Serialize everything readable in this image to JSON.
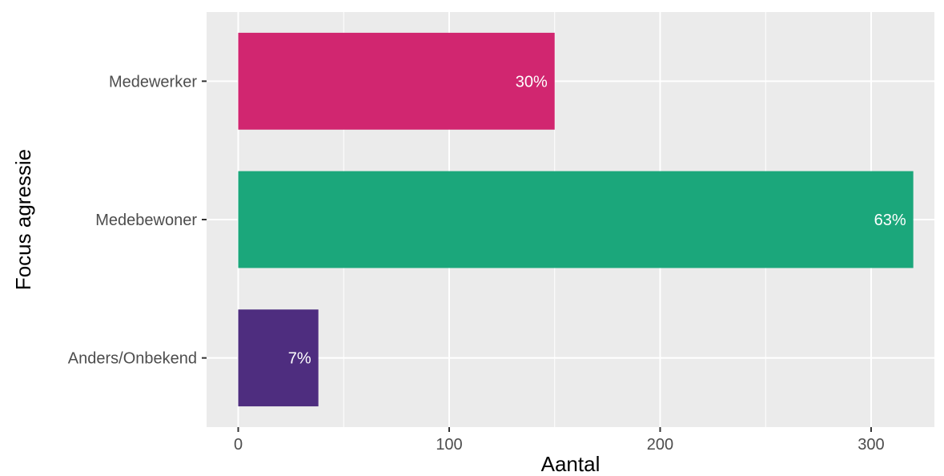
{
  "chart_data": {
    "type": "bar",
    "orientation": "horizontal",
    "categories": [
      "Medewerker",
      "Medebewoner",
      "Anders/Onbekend"
    ],
    "values": [
      150,
      320,
      38
    ],
    "labels": [
      "30%",
      "63%",
      "7%"
    ],
    "colors": [
      "#d12670",
      "#1ba77b",
      "#4e2d7f"
    ],
    "xlabel": "Aantal",
    "ylabel": "Focus agressie",
    "xlim": [
      -15,
      330
    ],
    "xticks": [
      0,
      100,
      200,
      300
    ],
    "xtick_labels": [
      "0",
      "100",
      "200",
      "300"
    ],
    "grid": true,
    "panel_background": "#ebebeb",
    "grid_color": "#ffffff"
  }
}
